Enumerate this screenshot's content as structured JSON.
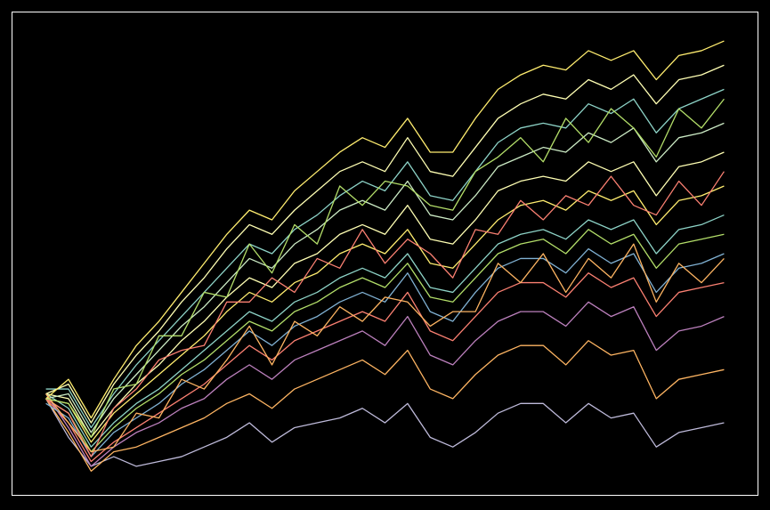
{
  "chart_data": {
    "type": "line",
    "background": "#000000",
    "x": [
      0,
      1,
      2,
      3,
      4,
      5,
      6,
      7,
      8,
      9,
      10,
      11,
      12,
      13,
      14,
      15,
      16,
      17,
      18,
      19,
      20,
      21,
      22,
      23,
      24,
      25,
      26,
      27,
      28,
      29,
      30
    ],
    "xlim": [
      -1.5,
      31.5
    ],
    "ylim": [
      0,
      100
    ],
    "grid": false,
    "series": [
      {
        "color": "#bebada",
        "values": [
          20,
          12,
          6,
          8,
          6,
          7,
          8,
          10,
          12,
          15,
          11,
          14,
          15,
          16,
          18,
          15,
          19,
          12,
          10,
          13,
          17,
          19,
          19,
          15,
          19,
          16,
          17,
          10,
          13,
          14,
          15
        ]
      },
      {
        "color": "#fdb462",
        "values": [
          20,
          13,
          5,
          9,
          10,
          12,
          14,
          16,
          19,
          21,
          18,
          22,
          24,
          26,
          28,
          25,
          30,
          22,
          20,
          25,
          29,
          31,
          31,
          27,
          32,
          29,
          30,
          20,
          24,
          25,
          26
        ]
      },
      {
        "color": "#bc80bd",
        "values": [
          21,
          14,
          6,
          10,
          13,
          15,
          18,
          20,
          24,
          27,
          24,
          28,
          30,
          32,
          34,
          31,
          37,
          29,
          27,
          32,
          36,
          38,
          38,
          35,
          40,
          37,
          39,
          30,
          34,
          35,
          37
        ]
      },
      {
        "color": "#fb8072",
        "values": [
          20,
          15,
          7,
          11,
          14,
          17,
          20,
          23,
          27,
          31,
          28,
          32,
          34,
          36,
          38,
          36,
          42,
          34,
          32,
          37,
          42,
          44,
          44,
          41,
          46,
          43,
          45,
          37,
          42,
          43,
          44
        ]
      },
      {
        "color": "#80b1d3",
        "values": [
          19,
          16,
          8,
          13,
          16,
          19,
          23,
          26,
          30,
          34,
          31,
          35,
          37,
          40,
          42,
          40,
          46,
          38,
          36,
          42,
          47,
          49,
          49,
          46,
          51,
          48,
          50,
          42,
          47,
          48,
          50
        ]
      },
      {
        "color": "#b3de69",
        "values": [
          20,
          17,
          9,
          14,
          18,
          21,
          25,
          28,
          32,
          36,
          34,
          38,
          40,
          43,
          45,
          43,
          48,
          41,
          40,
          45,
          50,
          52,
          53,
          50,
          55,
          52,
          54,
          47,
          52,
          53,
          54
        ]
      },
      {
        "color": "#8dd3c7",
        "values": [
          21,
          18,
          10,
          15,
          19,
          22,
          26,
          30,
          34,
          38,
          36,
          40,
          42,
          45,
          47,
          45,
          50,
          43,
          42,
          47,
          52,
          54,
          55,
          53,
          57,
          55,
          57,
          50,
          55,
          56,
          58
        ]
      },
      {
        "color": "#ffed6f",
        "values": [
          20,
          19,
          11,
          17,
          21,
          25,
          29,
          33,
          38,
          42,
          40,
          44,
          46,
          50,
          52,
          50,
          55,
          48,
          47,
          52,
          57,
          60,
          61,
          59,
          63,
          61,
          63,
          56,
          61,
          62,
          64
        ]
      },
      {
        "color": "#ffffb3",
        "values": [
          21,
          20,
          12,
          18,
          23,
          27,
          32,
          36,
          41,
          45,
          43,
          48,
          50,
          54,
          56,
          54,
          60,
          53,
          52,
          57,
          63,
          65,
          66,
          65,
          69,
          67,
          69,
          62,
          68,
          69,
          71
        ]
      },
      {
        "color": "#ccebc5",
        "values": [
          20,
          21,
          13,
          20,
          25,
          30,
          35,
          39,
          44,
          49,
          47,
          52,
          55,
          59,
          61,
          59,
          65,
          58,
          57,
          62,
          68,
          70,
          72,
          71,
          75,
          73,
          76,
          69,
          74,
          75,
          77
        ]
      },
      {
        "color": "#8dd3c7",
        "values": [
          22,
          22,
          14,
          21,
          27,
          32,
          37,
          42,
          47,
          52,
          50,
          55,
          58,
          62,
          65,
          63,
          69,
          62,
          61,
          67,
          73,
          76,
          77,
          76,
          81,
          79,
          82,
          75,
          80,
          82,
          84
        ]
      },
      {
        "color": "#ffffb3",
        "values": [
          21,
          23,
          15,
          23,
          29,
          34,
          40,
          45,
          51,
          56,
          54,
          59,
          63,
          67,
          69,
          67,
          74,
          67,
          66,
          72,
          78,
          81,
          83,
          82,
          86,
          84,
          87,
          81,
          86,
          87,
          89
        ]
      },
      {
        "color": "#ffed6f",
        "values": [
          20,
          24,
          16,
          24,
          31,
          36,
          42,
          48,
          54,
          59,
          57,
          63,
          67,
          71,
          74,
          72,
          78,
          71,
          71,
          78,
          84,
          87,
          89,
          88,
          92,
          90,
          92,
          86,
          91,
          92,
          94
        ]
      },
      {
        "color": "#fb8072",
        "values": [
          20,
          17,
          8,
          18,
          22,
          28,
          30,
          31,
          40,
          40,
          45,
          42,
          49,
          47,
          55,
          48,
          53,
          50,
          45,
          55,
          54,
          61,
          57,
          62,
          60,
          66,
          60,
          58,
          65,
          60,
          67
        ]
      },
      {
        "color": "#fdb462",
        "values": [
          21,
          15,
          9,
          10,
          17,
          16,
          24,
          22,
          28,
          35,
          27,
          36,
          33,
          39,
          36,
          41,
          40,
          35,
          38,
          38,
          48,
          44,
          50,
          42,
          49,
          45,
          52,
          40,
          48,
          44,
          49
        ]
      },
      {
        "color": "#b3de69",
        "values": [
          20,
          19,
          12,
          22,
          23,
          33,
          33,
          42,
          41,
          52,
          46,
          56,
          52,
          64,
          60,
          65,
          64,
          60,
          59,
          67,
          70,
          74,
          69,
          78,
          73,
          80,
          76,
          70,
          80,
          76,
          82
        ]
      }
    ]
  }
}
